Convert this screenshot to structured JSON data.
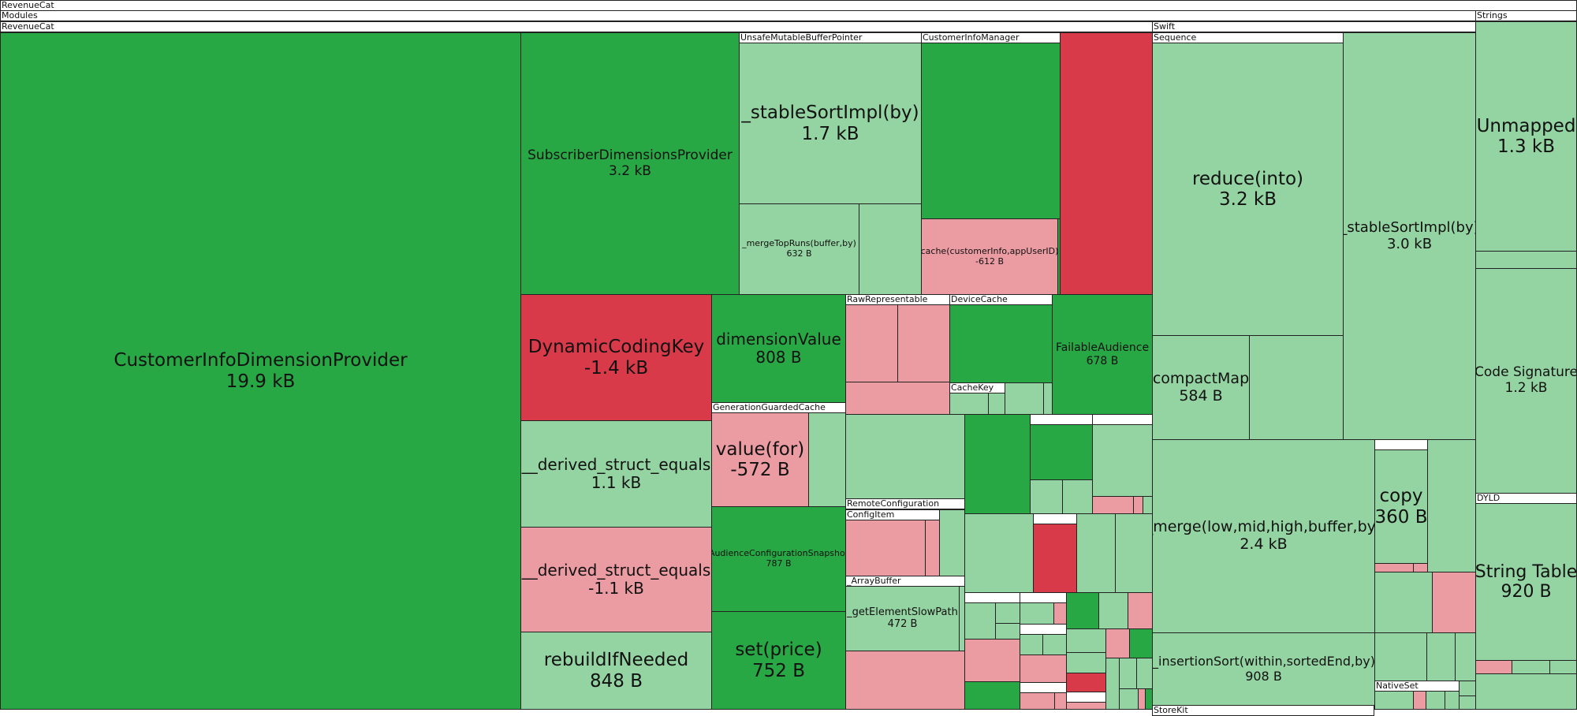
{
  "colors": {
    "increase_strong": "#28a745",
    "increase_light": "#94d4a2",
    "decrease_strong": "#d93a4a",
    "decrease_light": "#eb9ca3",
    "header": "#ffffff"
  },
  "headers": {
    "root": "RevenueCat",
    "modules": "Modules",
    "revenuecat": "RevenueCat",
    "swift": "Swift",
    "strings": "Strings",
    "unsafe_mutable_buffer_pointer": "UnsafeMutableBufferPointer",
    "customer_info_manager": "CustomerInfoManager",
    "sequence": "Sequence",
    "raw_representable": "RawRepresentable",
    "device_cache": "DeviceCache",
    "cache_key": "CacheKey",
    "generation_guarded_cache": "GenerationGuardedCache",
    "remote_configuration": "RemoteConfiguration",
    "config_item": "ConfigItem",
    "array_buffer": "_ArrayBuffer",
    "dyld": "DYLD",
    "native_set": "NativeSet",
    "store_kit": "StoreKit"
  },
  "cells": {
    "customer_info_dimension_provider": {
      "name": "CustomerInfoDimensionProvider",
      "size": "19.9 kB"
    },
    "subscriber_dimensions_provider": {
      "name": "SubscriberDimensionsProvider",
      "size": "3.2 kB"
    },
    "stable_sort_impl_1": {
      "name": "_stableSortImpl(by)",
      "size": "1.7 kB"
    },
    "merge_top_runs": {
      "name": "_mergeTopRuns(buffer,by)",
      "size": "632 B"
    },
    "cache_customer_info": {
      "name": "cache(customerInfo,appUserID)",
      "size": "-612 B"
    },
    "dynamic_coding_key": {
      "name": "DynamicCodingKey",
      "size": "-1.4 kB"
    },
    "dimension_value": {
      "name": "dimensionValue",
      "size": "808 B"
    },
    "fallible_audience": {
      "name": "FailableAudience",
      "size": "678 B"
    },
    "derived_struct_equals_1": {
      "name": "__derived_struct_equals",
      "size": "1.1 kB"
    },
    "derived_struct_equals_2": {
      "name": "__derived_struct_equals",
      "size": "-1.1 kB"
    },
    "value_for": {
      "name": "value(for)",
      "size": "-572 B"
    },
    "audience_configuration_snapshot": {
      "name": "AudienceConfigurationSnapshot",
      "size": "787 B"
    },
    "rebuild_if_needed": {
      "name": "rebuildIfNeeded",
      "size": "848 B"
    },
    "set_price": {
      "name": "set(price)",
      "size": "752 B"
    },
    "get_element_slow_path": {
      "name": "_getElementSlowPath",
      "size": "472 B"
    },
    "reduce_into": {
      "name": "reduce(into)",
      "size": "3.2 kB"
    },
    "compact_map": {
      "name": "compactMap",
      "size": "584 B"
    },
    "stable_sort_impl_2": {
      "name": "_stableSortImpl(by)",
      "size": "3.0 kB"
    },
    "merge_low_mid_high": {
      "name": "_merge(low,mid,high,buffer,by)",
      "size": "2.4 kB"
    },
    "copy": {
      "name": "copy",
      "size": "360 B"
    },
    "insertion_sort": {
      "name": "_insertionSort(within,sortedEnd,by)",
      "size": "908 B"
    },
    "unmapped": {
      "name": "Unmapped",
      "size": "1.3 kB"
    },
    "code_signature": {
      "name": "Code Signature",
      "size": "1.2 kB"
    },
    "string_table": {
      "name": "String Table",
      "size": "920 B"
    }
  }
}
